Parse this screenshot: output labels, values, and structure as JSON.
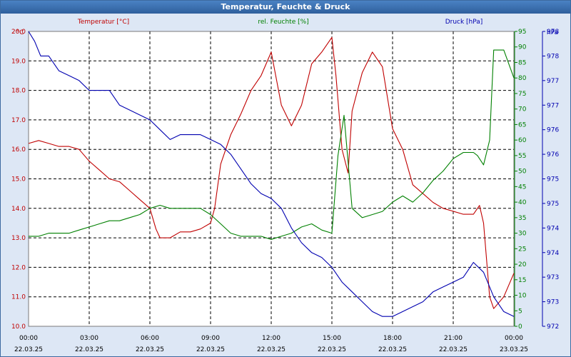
{
  "window": {
    "title": "Temperatur, Feuchte & Druck"
  },
  "colors": {
    "temperature": "#c00000",
    "humidity": "#008000",
    "pressure": "#0000b0",
    "grid": "#000000",
    "background": "#dde7f5",
    "plot": "#ffffff"
  },
  "chart_data": {
    "type": "line",
    "title": "Temperatur, Feuchte & Druck",
    "x_ticks": [
      {
        "time": "00:00",
        "date": "22.03.25"
      },
      {
        "time": "03:00",
        "date": "22.03.25"
      },
      {
        "time": "06:00",
        "date": "22.03.25"
      },
      {
        "time": "09:00",
        "date": "22.03.25"
      },
      {
        "time": "12:00",
        "date": "22.03.25"
      },
      {
        "time": "15:00",
        "date": "22.03.25"
      },
      {
        "time": "18:00",
        "date": "22.03.25"
      },
      {
        "time": "21:00",
        "date": "22.03.25"
      },
      {
        "time": "00:00",
        "date": "23.03.25"
      }
    ],
    "xlim": [
      0,
      24
    ],
    "grid": true,
    "axes": {
      "temperature": {
        "label": "Temperatur [°C]",
        "unit": "°C",
        "range": [
          10.0,
          20.0
        ],
        "ticks": [
          "10.0",
          "11.0",
          "12.0",
          "13.0",
          "14.0",
          "15.0",
          "16.0",
          "17.0",
          "18.0",
          "19.0",
          "20.0"
        ]
      },
      "humidity": {
        "label": "rel. Feuchte [%]",
        "unit": "%",
        "range": [
          0,
          95
        ],
        "ticks": [
          "0",
          "5",
          "10",
          "15",
          "20",
          "25",
          "30",
          "35",
          "40",
          "45",
          "50",
          "55",
          "60",
          "65",
          "70",
          "75",
          "80",
          "85",
          "90",
          "95"
        ]
      },
      "pressure": {
        "label": "Druck [hPa]",
        "unit": "hPa",
        "range": [
          972.0,
          978.0
        ],
        "ticks": [
          "972",
          "973",
          "973",
          "974",
          "974",
          "975",
          "975",
          "976",
          "976",
          "977",
          "977",
          "978",
          "978"
        ]
      }
    },
    "series": [
      {
        "name": "Temperatur [°C]",
        "axis": "temperature",
        "x": [
          0,
          0.5,
          1,
          1.5,
          2,
          2.5,
          3,
          3.5,
          4,
          4.5,
          5,
          5.5,
          6,
          6.3,
          6.5,
          7,
          7.5,
          8,
          8.5,
          9,
          9.2,
          9.5,
          10,
          10.5,
          11,
          11.5,
          12,
          12.5,
          13,
          13.5,
          14,
          14.5,
          15,
          15.2,
          15.5,
          15.8,
          16,
          16.5,
          17,
          17.5,
          18,
          18.5,
          19,
          19.5,
          20,
          20.5,
          21,
          21.5,
          22,
          22.3,
          22.5,
          22.8,
          23,
          23.5,
          24
        ],
        "y": [
          16.2,
          16.3,
          16.2,
          16.1,
          16.1,
          16.0,
          15.6,
          15.3,
          15.0,
          14.9,
          14.6,
          14.3,
          14.0,
          13.3,
          13.0,
          13.0,
          13.2,
          13.2,
          13.3,
          13.5,
          14.0,
          15.5,
          16.5,
          17.2,
          18.0,
          18.5,
          19.3,
          17.5,
          16.8,
          17.5,
          18.9,
          19.3,
          19.8,
          18.5,
          16.0,
          15.2,
          17.3,
          18.6,
          19.3,
          18.8,
          16.7,
          16.0,
          14.8,
          14.5,
          14.2,
          14.0,
          13.9,
          13.8,
          13.8,
          14.1,
          13.5,
          11.0,
          10.6,
          11.0,
          11.8
        ]
      },
      {
        "name": "rel. Feuchte [%]",
        "axis": "humidity",
        "x": [
          0,
          0.5,
          1,
          1.5,
          2,
          2.5,
          3,
          3.5,
          4,
          4.5,
          5,
          5.5,
          6,
          6.5,
          7,
          7.5,
          8,
          8.5,
          9,
          9.5,
          10,
          10.5,
          11,
          11.5,
          12,
          12.5,
          13,
          13.5,
          14,
          14.5,
          15,
          15.3,
          15.6,
          16,
          16.5,
          17,
          17.5,
          18,
          18.5,
          19,
          19.5,
          20,
          20.5,
          21,
          21.5,
          22,
          22.2,
          22.5,
          22.8,
          23,
          23.5,
          24
        ],
        "y": [
          29,
          29,
          30,
          30,
          30,
          31,
          32,
          33,
          34,
          34,
          35,
          36,
          38,
          39,
          38,
          38,
          38,
          38,
          36,
          33,
          30,
          29,
          29,
          29,
          28,
          29,
          30,
          32,
          33,
          31,
          30,
          55,
          68,
          38,
          35,
          36,
          37,
          40,
          42,
          40,
          43,
          47,
          50,
          54,
          56,
          56,
          55,
          52,
          60,
          89,
          89,
          80
        ]
      },
      {
        "name": "Druck [hPa]",
        "axis": "pressure",
        "x": [
          0,
          0.3,
          0.6,
          1,
          1.5,
          2,
          2.5,
          3,
          3.5,
          4,
          4.5,
          5,
          5.5,
          6,
          6.5,
          7,
          7.5,
          8,
          8.5,
          9,
          9.5,
          10,
          10.5,
          11,
          11.5,
          12,
          12.5,
          13,
          13.5,
          14,
          14.5,
          15,
          15.5,
          16,
          16.5,
          17,
          17.5,
          18,
          18.5,
          19,
          19.5,
          20,
          20.5,
          21,
          21.5,
          22,
          22.5,
          23,
          23.5,
          24
        ],
        "y": [
          978.0,
          977.8,
          977.5,
          977.5,
          977.2,
          977.1,
          977.0,
          976.8,
          976.8,
          976.8,
          976.5,
          976.4,
          976.3,
          976.2,
          976.0,
          975.8,
          975.9,
          975.9,
          975.9,
          975.8,
          975.7,
          975.5,
          975.2,
          974.9,
          974.7,
          974.6,
          974.4,
          974.0,
          973.7,
          973.5,
          973.4,
          973.2,
          972.9,
          972.7,
          972.5,
          972.3,
          972.2,
          972.2,
          972.3,
          972.4,
          972.5,
          972.7,
          972.8,
          972.9,
          973.0,
          973.3,
          973.1,
          972.6,
          972.3,
          972.2
        ]
      }
    ]
  }
}
